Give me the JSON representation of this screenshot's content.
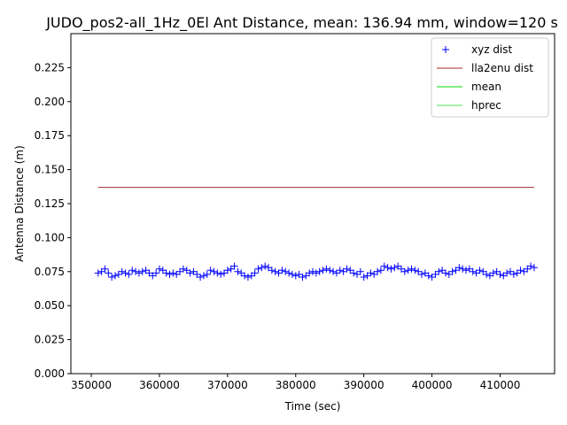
{
  "chart_data": {
    "type": "line",
    "title": "JUDO_pos2-all_1Hz_0El Ant Distance, mean: 136.94 mm, window=120 s",
    "xlabel": "Time (sec)",
    "ylabel": "Antenna Distance (m)",
    "xlim": [
      347000,
      418000
    ],
    "ylim": [
      0.0,
      0.25
    ],
    "xticks": [
      350000,
      360000,
      370000,
      380000,
      390000,
      400000,
      410000
    ],
    "xtick_labels": [
      "350000",
      "360000",
      "370000",
      "380000",
      "390000",
      "400000",
      "410000"
    ],
    "yticks": [
      0.0,
      0.025,
      0.05,
      0.075,
      0.1,
      0.125,
      0.15,
      0.175,
      0.2,
      0.225
    ],
    "ytick_labels": [
      "0.000",
      "0.025",
      "0.050",
      "0.075",
      "0.100",
      "0.125",
      "0.150",
      "0.175",
      "0.200",
      "0.225"
    ],
    "grid": false,
    "legend_position": "top-right",
    "series": [
      {
        "name": "xyz dist",
        "marker": "+",
        "color": "#0000ff",
        "x": [
          351000,
          351500,
          352000,
          352500,
          353000,
          353500,
          354000,
          354500,
          355000,
          355500,
          356000,
          356500,
          357000,
          357500,
          358000,
          358500,
          359000,
          359500,
          360000,
          360500,
          361000,
          361500,
          362000,
          362500,
          363000,
          363500,
          364000,
          364500,
          365000,
          365500,
          366000,
          366500,
          367000,
          367500,
          368000,
          368500,
          369000,
          369500,
          370000,
          370500,
          371000,
          371500,
          372000,
          372500,
          373000,
          373500,
          374000,
          374500,
          375000,
          375500,
          376000,
          376500,
          377000,
          377500,
          378000,
          378500,
          379000,
          379500,
          380000,
          380500,
          381000,
          381500,
          382000,
          382500,
          383000,
          383500,
          384000,
          384500,
          385000,
          385500,
          386000,
          386500,
          387000,
          387500,
          388000,
          388500,
          389000,
          389500,
          390000,
          390500,
          391000,
          391500,
          392000,
          392500,
          393000,
          393500,
          394000,
          394500,
          395000,
          395500,
          396000,
          396500,
          397000,
          397500,
          398000,
          398500,
          399000,
          399500,
          400000,
          400500,
          401000,
          401500,
          402000,
          402500,
          403000,
          403500,
          404000,
          404500,
          405000,
          405500,
          406000,
          406500,
          407000,
          407500,
          408000,
          408500,
          409000,
          409500,
          410000,
          410500,
          411000,
          411500,
          412000,
          412500,
          413000,
          413500,
          414000,
          414500,
          415000
        ],
        "y": [
          0.074,
          0.075,
          0.077,
          0.074,
          0.071,
          0.072,
          0.073,
          0.075,
          0.074,
          0.073,
          0.076,
          0.075,
          0.074,
          0.075,
          0.076,
          0.074,
          0.072,
          0.074,
          0.077,
          0.076,
          0.074,
          0.073,
          0.074,
          0.073,
          0.075,
          0.077,
          0.076,
          0.074,
          0.075,
          0.073,
          0.071,
          0.072,
          0.073,
          0.076,
          0.075,
          0.074,
          0.073,
          0.074,
          0.076,
          0.077,
          0.079,
          0.075,
          0.074,
          0.072,
          0.071,
          0.072,
          0.074,
          0.077,
          0.078,
          0.079,
          0.078,
          0.076,
          0.075,
          0.074,
          0.076,
          0.075,
          0.074,
          0.073,
          0.072,
          0.073,
          0.071,
          0.072,
          0.074,
          0.075,
          0.074,
          0.075,
          0.076,
          0.077,
          0.076,
          0.075,
          0.074,
          0.076,
          0.075,
          0.077,
          0.076,
          0.074,
          0.073,
          0.075,
          0.071,
          0.072,
          0.074,
          0.073,
          0.075,
          0.076,
          0.079,
          0.078,
          0.077,
          0.078,
          0.079,
          0.077,
          0.075,
          0.076,
          0.077,
          0.076,
          0.075,
          0.073,
          0.074,
          0.072,
          0.071,
          0.073,
          0.075,
          0.076,
          0.074,
          0.073,
          0.075,
          0.076,
          0.078,
          0.077,
          0.076,
          0.077,
          0.075,
          0.074,
          0.076,
          0.075,
          0.073,
          0.072,
          0.074,
          0.075,
          0.073,
          0.072,
          0.074,
          0.075,
          0.073,
          0.074,
          0.076,
          0.075,
          0.077,
          0.079,
          0.078
        ]
      },
      {
        "name": "lla2enu dist",
        "color": "#a52a2a",
        "x": [
          351000,
          415000
        ],
        "y": [
          0.137,
          0.137
        ]
      },
      {
        "name": "mean",
        "color": "#00dd00",
        "x": [],
        "y": []
      },
      {
        "name": "hprec",
        "color": "#55dd55",
        "x": [],
        "y": []
      }
    ]
  }
}
